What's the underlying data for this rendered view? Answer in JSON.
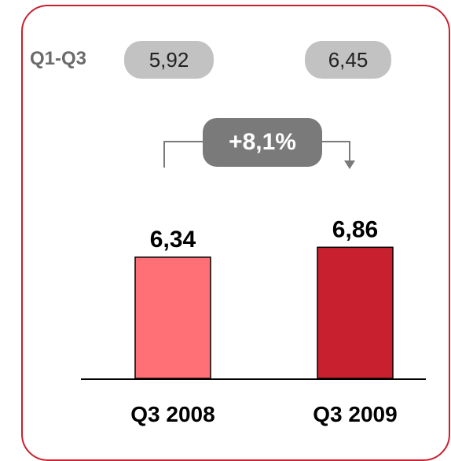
{
  "summary": {
    "label": "Q1-Q3",
    "left_value": "5,92",
    "right_value": "6,45"
  },
  "growth": {
    "label": "+8,1%"
  },
  "colors": {
    "frame": "#c8202f",
    "bar_2008": "#ff7076",
    "bar_2009": "#c8202f",
    "pill": "#c2c2c2",
    "growth_pill": "#7a7a7a",
    "connector": "#7a7a7a"
  },
  "chart_data": {
    "type": "bar",
    "categories": [
      "Q3 2008",
      "Q3 2009"
    ],
    "values": [
      6.34,
      6.86
    ],
    "value_labels": [
      "6,34",
      "6,86"
    ],
    "title": "",
    "xlabel": "",
    "ylabel": ""
  }
}
